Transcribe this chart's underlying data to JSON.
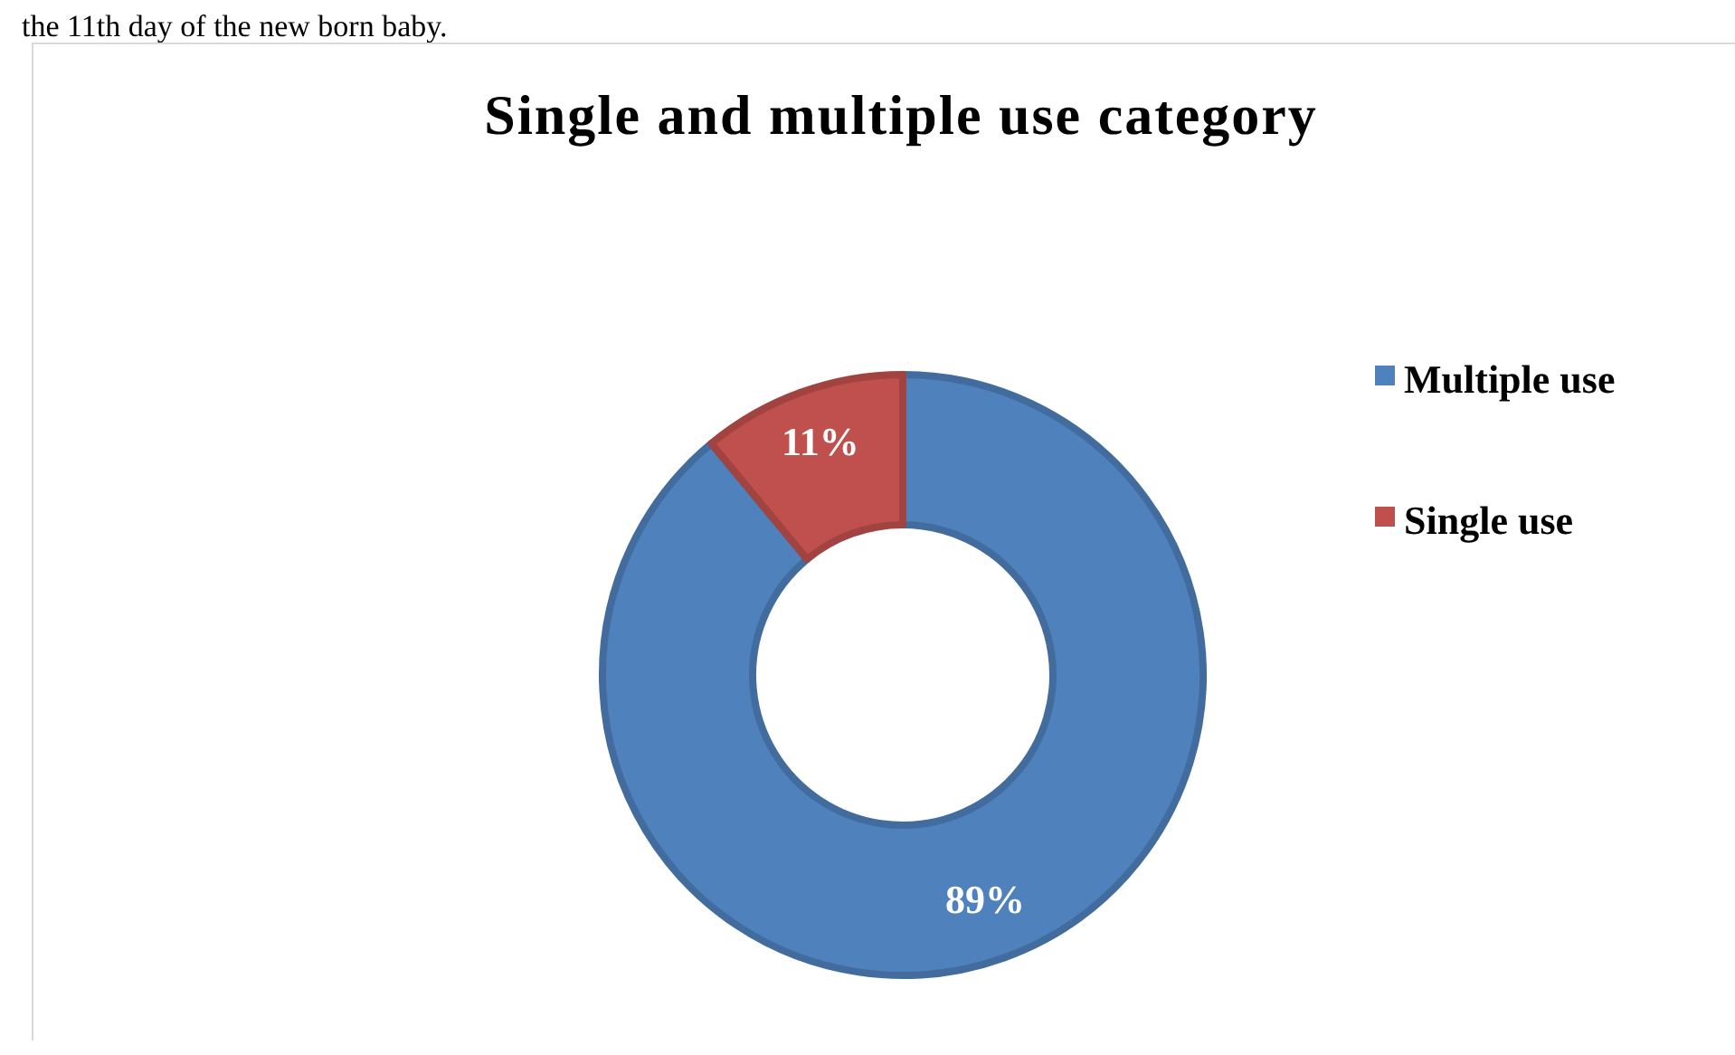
{
  "chart_data": {
    "type": "donut",
    "title": "Single and multiple use category",
    "annotations": [
      "the 11th day of the new born baby."
    ],
    "categories": [
      "Multiple use",
      "Single use"
    ],
    "values": [
      89,
      11
    ],
    "colors": [
      "#4f81bd",
      "#c0504d"
    ],
    "value_labels": [
      "89%",
      "11%"
    ],
    "legend": "right"
  }
}
